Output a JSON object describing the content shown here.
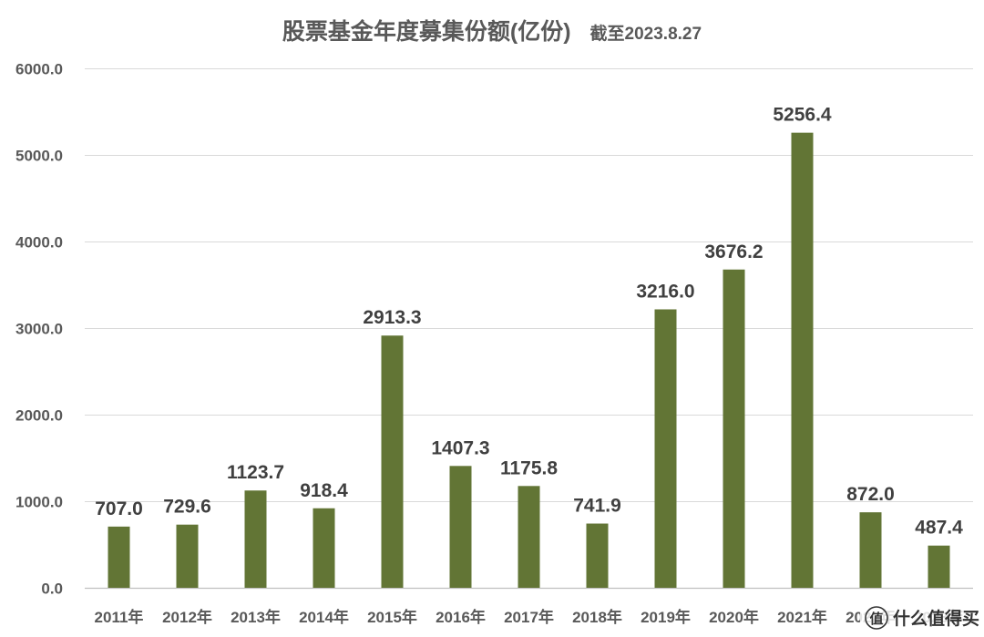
{
  "chart_data": {
    "type": "bar",
    "title": "股票基金年度募集份额(亿份)",
    "subtitle": "截至2023.8.27",
    "xlabel": "",
    "ylabel": "",
    "categories": [
      "2011年",
      "2012年",
      "2013年",
      "2014年",
      "2015年",
      "2016年",
      "2017年",
      "2018年",
      "2019年",
      "2020年",
      "2021年",
      "2022年",
      "2023年"
    ],
    "values": [
      707.0,
      729.6,
      1123.7,
      918.4,
      2913.3,
      1407.3,
      1175.8,
      741.9,
      3216.0,
      3676.2,
      5256.4,
      872.0,
      487.4
    ],
    "ylim": [
      0,
      6000
    ],
    "yticks": [
      0,
      1000,
      2000,
      3000,
      4000,
      5000,
      6000
    ],
    "tick_decimals": 1,
    "data_labels": true,
    "grid": true,
    "legend": "none",
    "bar_color": "#627535"
  },
  "watermark": {
    "icon_text": "值",
    "text": "什么值得买"
  }
}
